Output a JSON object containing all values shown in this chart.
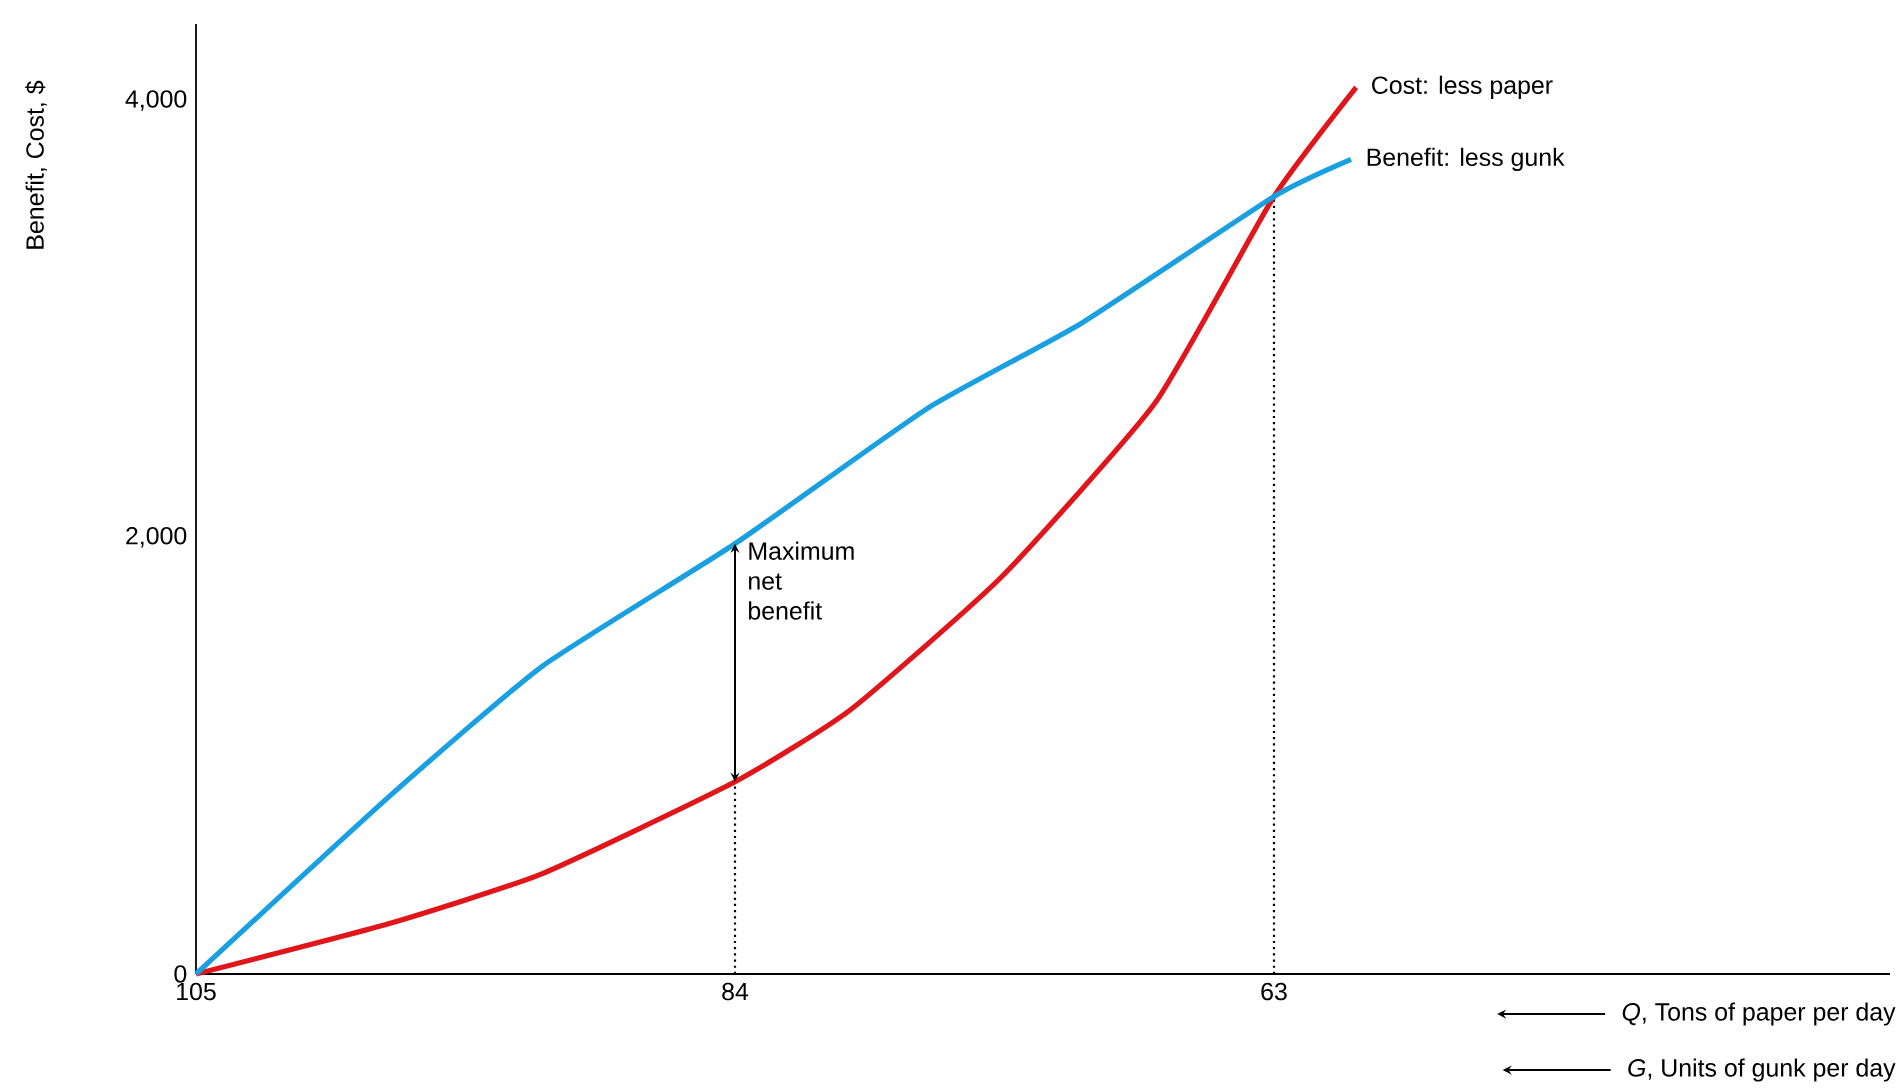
{
  "chart_data": {
    "type": "line",
    "ylabel": "Benefit, Cost, $",
    "xlabel": "*Q*, Tons of paper per day",
    "xlim": [
      105,
      39
    ],
    "xticks": [
      105,
      84,
      63
    ],
    "ylim": [
      0,
      4350
    ],
    "yticks": [
      {
        "value": 0,
        "label": "0"
      },
      {
        "value": 2000,
        "label": "2,000"
      },
      {
        "value": 4000,
        "label": "4,000"
      }
    ],
    "series": [
      {
        "name": "Cost: less paper",
        "color": "#e0161b",
        "x": [
          105,
          97.5,
          91.5,
          84,
          79.5,
          73.6,
          67.6,
          63,
          59.8
        ],
        "values": [
          0,
          230,
          460,
          880,
          1210,
          1820,
          2620,
          3560,
          4060
        ]
      },
      {
        "name": "Benefit: less gunk",
        "color": "#1aa0e0",
        "x": [
          105,
          97.5,
          91.5,
          84,
          76.5,
          70.5,
          63,
          60
        ],
        "values": [
          0,
          810,
          1410,
          1970,
          2590,
          2980,
          3560,
          3730
        ]
      }
    ],
    "ref_lines": [
      {
        "axis": "x",
        "value": 84,
        "line_style": "dotted"
      },
      {
        "axis": "x",
        "value": 63,
        "line_style": "dotted"
      }
    ],
    "annotations": [
      {
        "text": "Maximum net benefit",
        "x": 84,
        "y": 2000
      },
      "*G*, Units of gunk per day"
    ]
  }
}
